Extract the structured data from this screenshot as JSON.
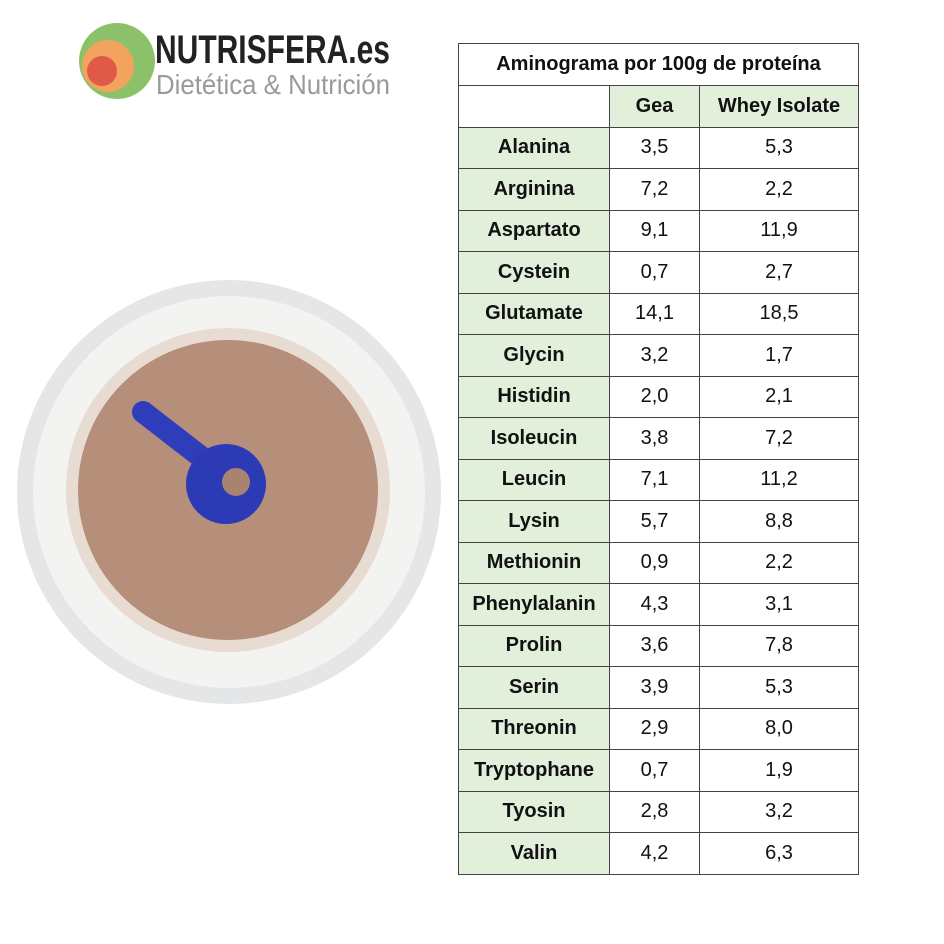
{
  "logo": {
    "name": "NUTRISFERA.es",
    "tagline": "Dietética & Nutrición"
  },
  "table": {
    "title": "Aminograma por 100g de proteína",
    "columns": [
      "Gea",
      "Whey Isolate"
    ],
    "rows": [
      [
        "Alanina",
        "3,5",
        "5,3"
      ],
      [
        "Arginina",
        "7,2",
        "2,2"
      ],
      [
        "Aspartato",
        "9,1",
        "11,9"
      ],
      [
        "Cystein",
        "0,7",
        "2,7"
      ],
      [
        "Glutamate",
        "14,1",
        "18,5"
      ],
      [
        "Glycin",
        "3,2",
        "1,7"
      ],
      [
        "Histidin",
        "2,0",
        "2,1"
      ],
      [
        "Isoleucin",
        "3,8",
        "7,2"
      ],
      [
        "Leucin",
        "7,1",
        "11,2"
      ],
      [
        "Lysin",
        "5,7",
        "8,8"
      ],
      [
        "Methionin",
        "0,9",
        "2,2"
      ],
      [
        "Phenylalanin",
        "4,3",
        "3,1"
      ],
      [
        "Prolin",
        "3,6",
        "7,8"
      ],
      [
        "Serin",
        "3,9",
        "5,3"
      ],
      [
        "Threonin",
        "2,9",
        "8,0"
      ],
      [
        "Tryptophane",
        "0,7",
        "1,9"
      ],
      [
        "Tyosin",
        "2,8",
        "3,2"
      ],
      [
        "Valin",
        "4,2",
        "6,3"
      ]
    ]
  }
}
